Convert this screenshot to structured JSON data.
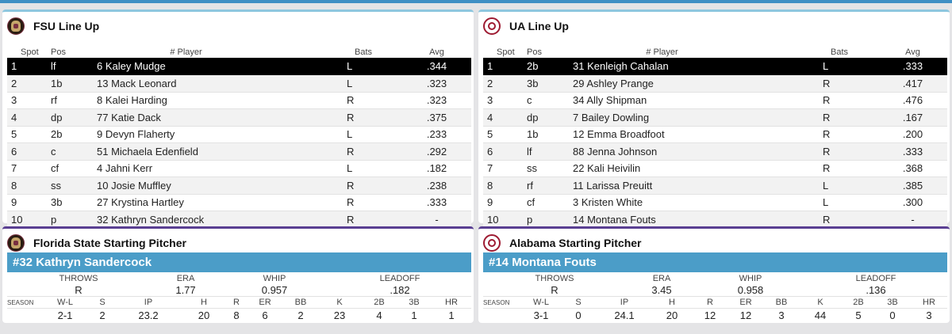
{
  "lineups": [
    {
      "title": "FSU Line Up",
      "headers": {
        "spot": "Spot",
        "pos": "Pos",
        "player": "# Player",
        "bats": "Bats",
        "avg": "Avg"
      },
      "rows": [
        {
          "spot": "1",
          "pos": "lf",
          "player": "6 Kaley Mudge",
          "bats": "L",
          "avg": ".344"
        },
        {
          "spot": "2",
          "pos": "1b",
          "player": "13 Mack Leonard",
          "bats": "L",
          "avg": ".323"
        },
        {
          "spot": "3",
          "pos": "rf",
          "player": "8 Kalei Harding",
          "bats": "R",
          "avg": ".323"
        },
        {
          "spot": "4",
          "pos": "dp",
          "player": "77 Katie Dack",
          "bats": "R",
          "avg": ".375"
        },
        {
          "spot": "5",
          "pos": "2b",
          "player": "9 Devyn Flaherty",
          "bats": "L",
          "avg": ".233"
        },
        {
          "spot": "6",
          "pos": "c",
          "player": "51 Michaela Edenfield",
          "bats": "R",
          "avg": ".292"
        },
        {
          "spot": "7",
          "pos": "cf",
          "player": "4 Jahni Kerr",
          "bats": "L",
          "avg": ".182"
        },
        {
          "spot": "8",
          "pos": "ss",
          "player": "10 Josie Muffley",
          "bats": "R",
          "avg": ".238"
        },
        {
          "spot": "9",
          "pos": "3b",
          "player": "27 Krystina Hartley",
          "bats": "R",
          "avg": ".333"
        },
        {
          "spot": "10",
          "pos": "p",
          "player": "32 Kathryn Sandercock",
          "bats": "R",
          "avg": "-"
        }
      ]
    },
    {
      "title": "UA Line Up",
      "headers": {
        "spot": "Spot",
        "pos": "Pos",
        "player": "# Player",
        "bats": "Bats",
        "avg": "Avg"
      },
      "rows": [
        {
          "spot": "1",
          "pos": "2b",
          "player": "31 Kenleigh Cahalan",
          "bats": "L",
          "avg": ".333"
        },
        {
          "spot": "2",
          "pos": "3b",
          "player": "29 Ashley Prange",
          "bats": "R",
          "avg": ".417"
        },
        {
          "spot": "3",
          "pos": "c",
          "player": "34 Ally Shipman",
          "bats": "R",
          "avg": ".476"
        },
        {
          "spot": "4",
          "pos": "dp",
          "player": "7 Bailey Dowling",
          "bats": "R",
          "avg": ".167"
        },
        {
          "spot": "5",
          "pos": "1b",
          "player": "12 Emma Broadfoot",
          "bats": "R",
          "avg": ".200"
        },
        {
          "spot": "6",
          "pos": "lf",
          "player": "88 Jenna Johnson",
          "bats": "R",
          "avg": ".333"
        },
        {
          "spot": "7",
          "pos": "ss",
          "player": "22 Kali Heivilin",
          "bats": "R",
          "avg": ".368"
        },
        {
          "spot": "8",
          "pos": "rf",
          "player": "11 Larissa Preuitt",
          "bats": "L",
          "avg": ".385"
        },
        {
          "spot": "9",
          "pos": "cf",
          "player": "3 Kristen White",
          "bats": "L",
          "avg": ".300"
        },
        {
          "spot": "10",
          "pos": "p",
          "player": "14 Montana Fouts",
          "bats": "R",
          "avg": "-"
        }
      ]
    }
  ],
  "pitchers": [
    {
      "title": "Florida State Starting Pitcher",
      "name": "#32 Kathryn Sandercock",
      "summary_labels": {
        "throws": "THROWS",
        "era": "ERA",
        "whip": "WHIP",
        "leadoff": "LEADOFF"
      },
      "summary": {
        "throws": "R",
        "era": "1.77",
        "whip": "0.957",
        "leadoff": ".182"
      },
      "season_label": "SEASON",
      "stat_labels": {
        "wl": "W-L",
        "s": "S",
        "ip": "IP",
        "h": "H",
        "r": "R",
        "er": "ER",
        "bb": "BB",
        "k": "K",
        "b2": "2B",
        "b3": "3B",
        "hr": "HR"
      },
      "stats": {
        "wl": "2-1",
        "s": "2",
        "ip": "23.2",
        "h": "20",
        "r": "8",
        "er": "6",
        "bb": "2",
        "k": "23",
        "b2": "4",
        "b3": "1",
        "hr": "1"
      }
    },
    {
      "title": "Alabama Starting Pitcher",
      "name": "#14 Montana Fouts",
      "summary_labels": {
        "throws": "THROWS",
        "era": "ERA",
        "whip": "WHIP",
        "leadoff": "LEADOFF"
      },
      "summary": {
        "throws": "R",
        "era": "3.45",
        "whip": "0.958",
        "leadoff": ".136"
      },
      "season_label": "SEASON",
      "stat_labels": {
        "wl": "W-L",
        "s": "S",
        "ip": "IP",
        "h": "H",
        "r": "R",
        "er": "ER",
        "bb": "BB",
        "k": "K",
        "b2": "2B",
        "b3": "3B",
        "hr": "HR"
      },
      "stats": {
        "wl": "3-1",
        "s": "0",
        "ip": "24.1",
        "h": "20",
        "r": "12",
        "er": "12",
        "bb": "3",
        "k": "44",
        "b2": "5",
        "b3": "0",
        "hr": "3"
      }
    }
  ],
  "selected_spot": "1",
  "icons": {
    "fsu": "fsu-seminole-logo-icon",
    "ua": "alabama-a-logo-icon"
  }
}
